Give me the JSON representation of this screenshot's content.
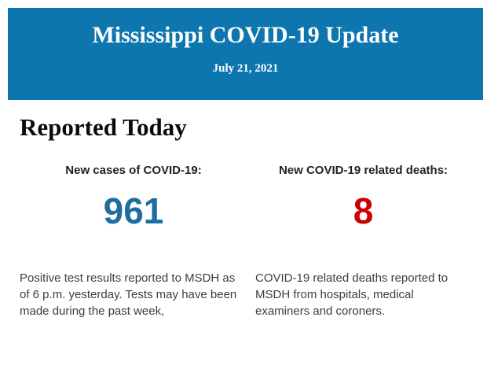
{
  "colors": {
    "header_bg": "#0e76ae",
    "header_text": "#ffffff",
    "cases_number": "#1d6d9f",
    "deaths_number": "#cc0000",
    "heading_text": "#0a0a0a",
    "label_text": "#222222",
    "body_text": "#3d3d3d",
    "page_bg": "#ffffff"
  },
  "header": {
    "title": "Mississippi COVID-19 Update",
    "date": "July 21, 2021"
  },
  "section": {
    "heading": "Reported Today"
  },
  "stats": {
    "cases": {
      "label": "New cases of COVID-19:",
      "value": "961",
      "description": "Positive test results reported to MSDH as of 6 p.m. yesterday. Tests may have been made during the past week,"
    },
    "deaths": {
      "label": "New COVID-19 related deaths:",
      "value": "8",
      "description": "COVID-19 related deaths reported to MSDH from hospitals, medical examiners and coroners."
    }
  }
}
